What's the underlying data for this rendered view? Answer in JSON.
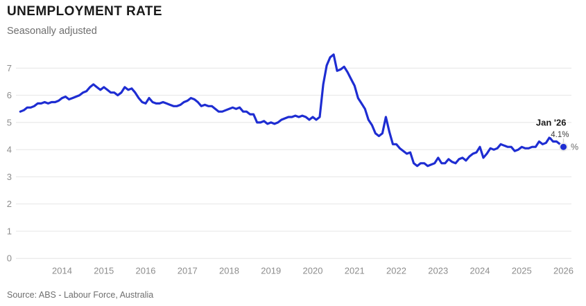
{
  "header": {
    "title": "UNEMPLOYMENT RATE",
    "subtitle": "Seasonally adjusted"
  },
  "footer": {
    "source": "Source: ABS - Labour Force, Australia"
  },
  "annotation": {
    "date_label": "Jan '26",
    "value_label": "4.1%",
    "unit_label": "%"
  },
  "colors": {
    "line": "#1e2dd2",
    "grid": "#e4e4e4",
    "tick": "#8d8d8d",
    "annotation_date": "#1a1a1a",
    "annotation_value": "#3d3d3d",
    "unit": "#6a6a6a",
    "leader": "#cfcfcf",
    "halo": "#e9e9e9"
  },
  "chart_data": {
    "type": "line",
    "series_name": "Unemployment rate",
    "units": "%",
    "frequency": "monthly",
    "x_start": "2013-01",
    "x_end": "2026-01",
    "ylim": [
      0,
      7.8
    ],
    "grid": "horizontal",
    "legend": "none",
    "yticks": [
      0,
      1,
      2,
      3,
      4,
      5,
      6,
      7
    ],
    "xticks": [
      2014,
      2015,
      2016,
      2017,
      2018,
      2019,
      2020,
      2021,
      2022,
      2023,
      2024,
      2025,
      2026
    ],
    "values": [
      5.4,
      5.45,
      5.55,
      5.55,
      5.6,
      5.7,
      5.7,
      5.75,
      5.7,
      5.75,
      5.75,
      5.8,
      5.9,
      5.95,
      5.85,
      5.9,
      5.95,
      6.0,
      6.1,
      6.15,
      6.3,
      6.4,
      6.3,
      6.2,
      6.3,
      6.2,
      6.1,
      6.1,
      6.0,
      6.1,
      6.3,
      6.2,
      6.25,
      6.1,
      5.9,
      5.75,
      5.7,
      5.9,
      5.75,
      5.7,
      5.7,
      5.75,
      5.7,
      5.65,
      5.6,
      5.6,
      5.65,
      5.75,
      5.8,
      5.9,
      5.85,
      5.75,
      5.6,
      5.65,
      5.6,
      5.6,
      5.5,
      5.4,
      5.4,
      5.45,
      5.5,
      5.55,
      5.5,
      5.55,
      5.4,
      5.4,
      5.3,
      5.3,
      5.0,
      5.0,
      5.05,
      4.95,
      5.0,
      4.95,
      5.0,
      5.1,
      5.15,
      5.2,
      5.2,
      5.25,
      5.2,
      5.25,
      5.2,
      5.1,
      5.2,
      5.1,
      5.2,
      6.4,
      7.1,
      7.4,
      7.5,
      6.9,
      6.95,
      7.05,
      6.85,
      6.6,
      6.35,
      5.9,
      5.7,
      5.5,
      5.1,
      4.9,
      4.6,
      4.5,
      4.6,
      5.2,
      4.65,
      4.2,
      4.2,
      4.05,
      3.95,
      3.85,
      3.9,
      3.5,
      3.4,
      3.5,
      3.5,
      3.4,
      3.45,
      3.5,
      3.7,
      3.5,
      3.5,
      3.65,
      3.55,
      3.5,
      3.65,
      3.7,
      3.6,
      3.75,
      3.85,
      3.9,
      4.1,
      3.7,
      3.85,
      4.05,
      4.0,
      4.05,
      4.2,
      4.15,
      4.1,
      4.1,
      3.95,
      4.0,
      4.1,
      4.05,
      4.05,
      4.1,
      4.1,
      4.3,
      4.2,
      4.25,
      4.45,
      4.3,
      4.3,
      4.2,
      4.1
    ],
    "last_point": {
      "date": "Jan '26",
      "value": 4.1
    }
  }
}
